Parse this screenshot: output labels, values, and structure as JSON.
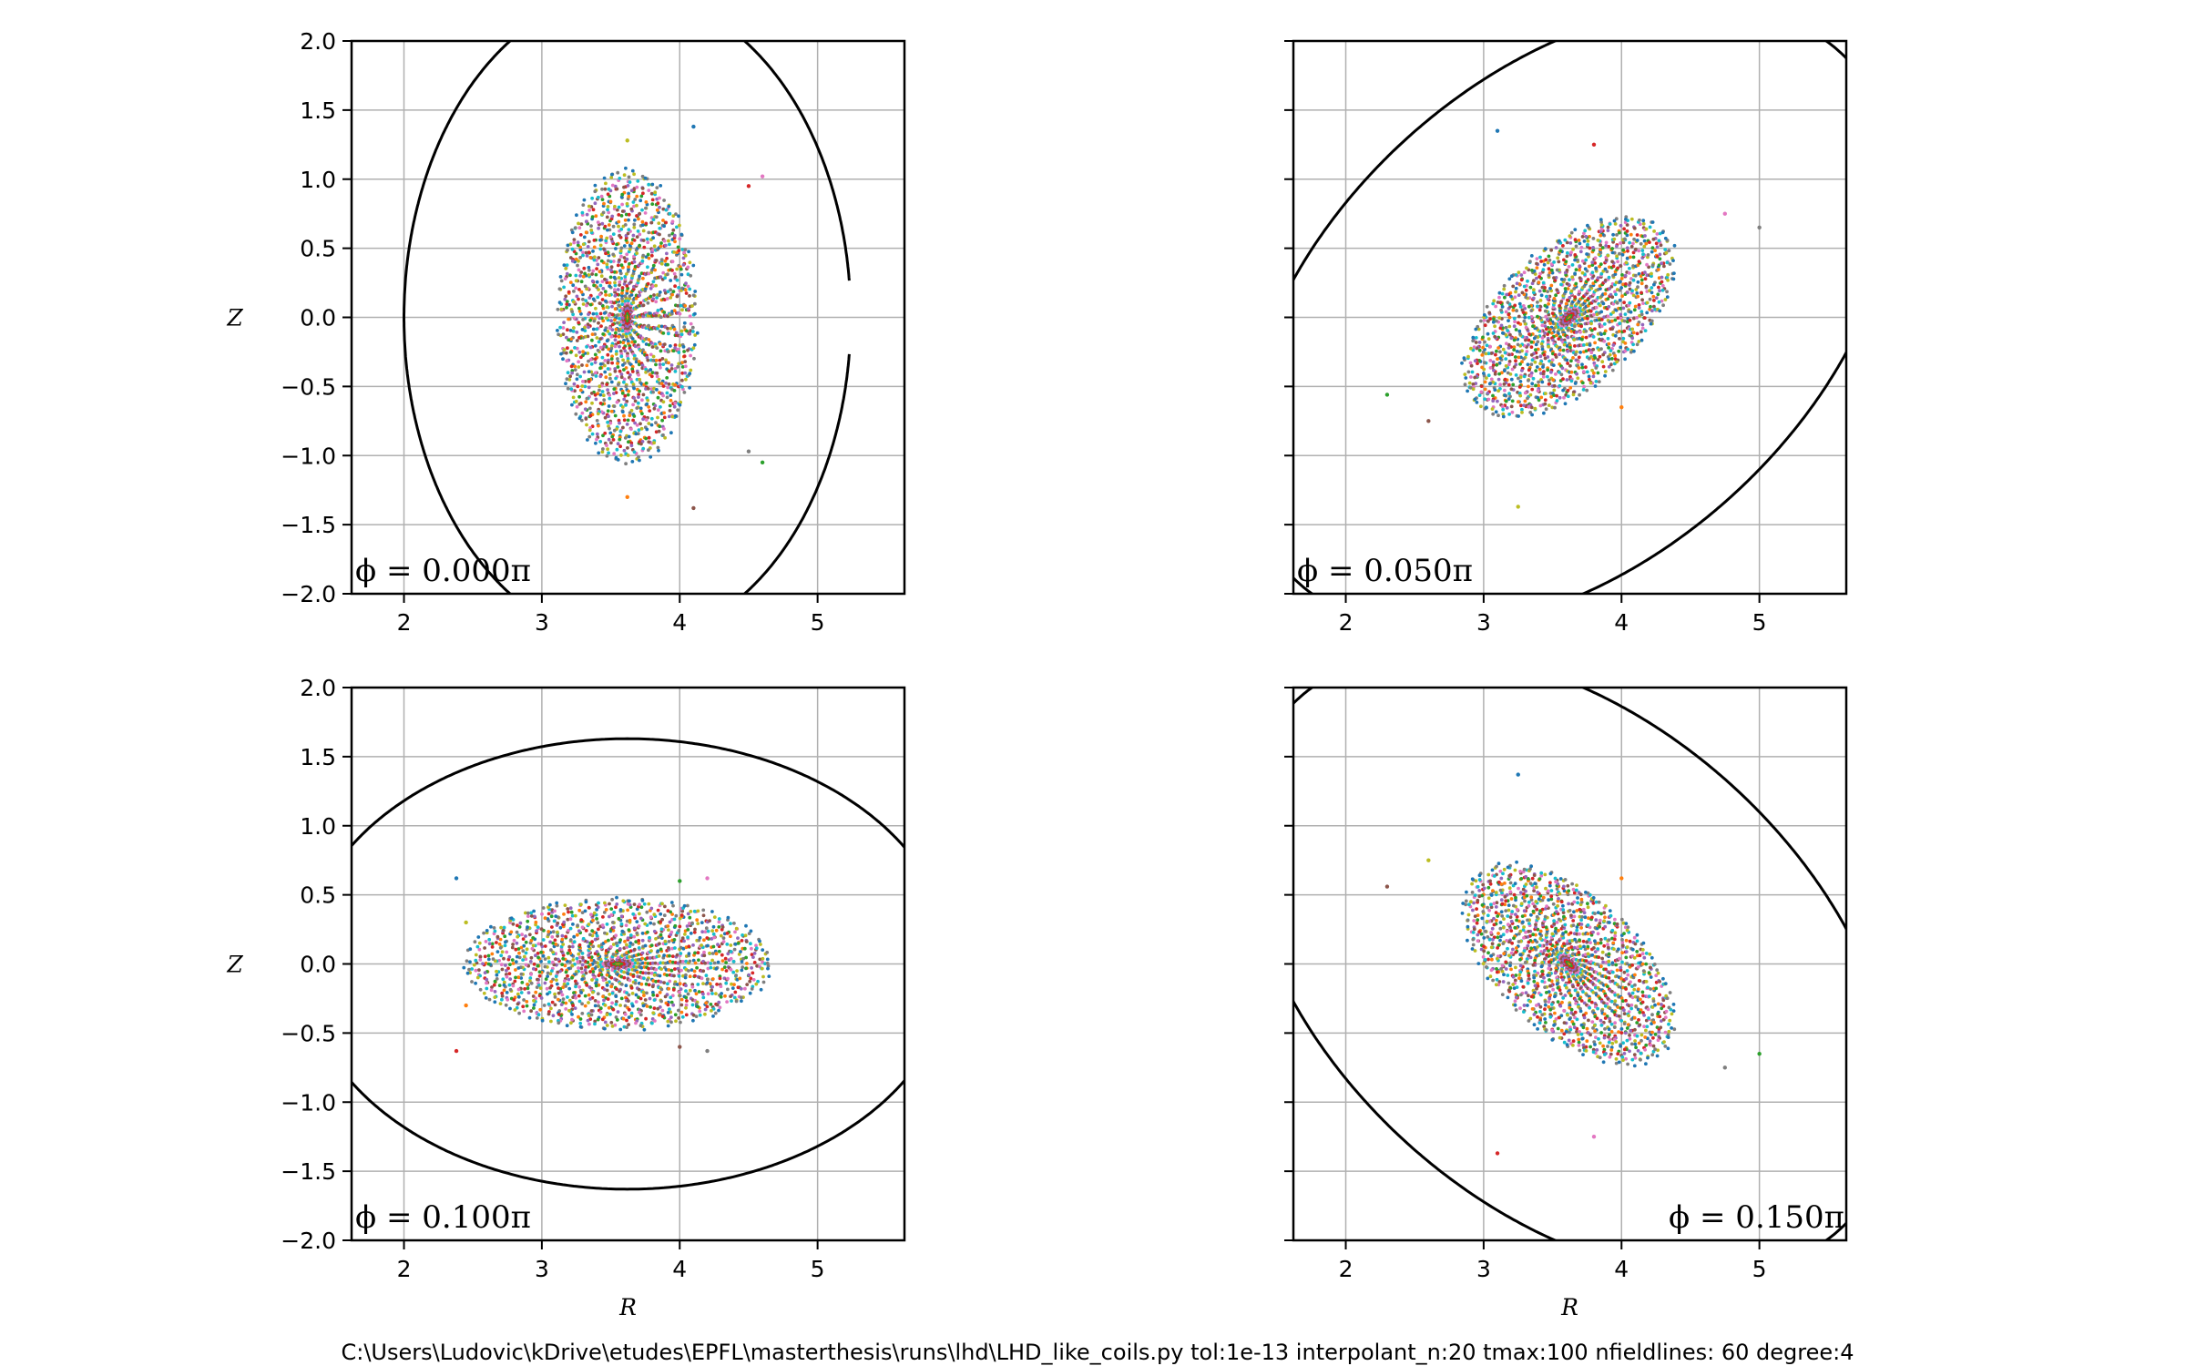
{
  "footer": "C:\\Users\\Ludovic\\kDrive\\etudes\\EPFL\\masterthesis\\runs\\lhd\\LHD_like_coils.py  tol:1e-13  interpolant_n:20  tmax:100  nfieldlines: 60 degree:4",
  "colors": {
    "boundary": "#000000",
    "grid": "#b0b0b0",
    "palette": [
      "#1f77b4",
      "#ff7f0e",
      "#2ca02c",
      "#d62728",
      "#9467bd",
      "#8c564b",
      "#e377c2",
      "#17becf",
      "#bcbd22",
      "#7f7f7f"
    ]
  },
  "chart_data": [
    {
      "type": "scatter",
      "panel": "top-left",
      "annotation": "ϕ = 0.000π",
      "annotation_position": "bottom-left",
      "xlabel": "",
      "ylabel": "Z",
      "xlim": [
        1.62,
        5.63
      ],
      "ylim": [
        -2.0,
        2.0
      ],
      "xticks": [
        2,
        3,
        4,
        5
      ],
      "yticks": [
        -2.0,
        -1.5,
        -1.0,
        -0.5,
        0.0,
        0.5,
        1.0,
        1.5,
        2.0
      ],
      "grid": true,
      "boundary": {
        "center": [
          3.62,
          0.0
        ],
        "a": 1.62,
        "b": 2.35,
        "angle_deg": 0,
        "gap_near_r": 5.25,
        "gap_half_z": 0.25
      },
      "surfaces": {
        "center": [
          3.62,
          0.0
        ],
        "a": 0.5,
        "b": 1.05,
        "angle_deg": 0,
        "count": 60
      },
      "stray_points": [
        [
          4.1,
          1.38
        ],
        [
          4.5,
          0.95
        ],
        [
          4.6,
          1.02
        ],
        [
          4.5,
          -0.97
        ],
        [
          4.6,
          -1.05
        ],
        [
          4.1,
          -1.38
        ],
        [
          3.62,
          1.28
        ],
        [
          3.62,
          -1.3
        ]
      ]
    },
    {
      "type": "scatter",
      "panel": "top-right",
      "annotation": "ϕ = 0.050π",
      "annotation_position": "bottom-left",
      "xlabel": "",
      "ylabel": "",
      "xlim": [
        1.62,
        5.63
      ],
      "ylim": [
        -2.0,
        2.0
      ],
      "xticks": [
        2,
        3,
        4,
        5
      ],
      "yticks": [
        -2.0,
        -1.5,
        -1.0,
        -0.5,
        0.0,
        0.5,
        1.0,
        1.5,
        2.0
      ],
      "grid": true,
      "boundary": {
        "center": [
          3.62,
          0.0
        ],
        "a": 2.75,
        "b": 1.75,
        "angle_deg": 42
      },
      "surfaces": {
        "center": [
          3.62,
          0.0
        ],
        "a": 0.92,
        "b": 0.5,
        "angle_deg": 42,
        "count": 60
      },
      "stray_points": [
        [
          3.1,
          1.35
        ],
        [
          3.8,
          1.25
        ],
        [
          4.75,
          0.75
        ],
        [
          5.0,
          0.65
        ],
        [
          2.3,
          -0.56
        ],
        [
          2.6,
          -0.75
        ],
        [
          3.25,
          -1.37
        ],
        [
          4.0,
          -0.65
        ]
      ]
    },
    {
      "type": "scatter",
      "panel": "bottom-left",
      "annotation": "ϕ = 0.100π",
      "annotation_position": "bottom-left",
      "xlabel": "R",
      "ylabel": "Z",
      "xlim": [
        1.62,
        5.63
      ],
      "ylim": [
        -2.0,
        2.0
      ],
      "xticks": [
        2,
        3,
        4,
        5
      ],
      "yticks": [
        -2.0,
        -1.5,
        -1.0,
        -0.5,
        0.0,
        0.5,
        1.0,
        1.5,
        2.0
      ],
      "grid": true,
      "boundary": {
        "center": [
          3.62,
          0.0
        ],
        "a": 2.35,
        "b": 1.63,
        "angle_deg": 0
      },
      "surfaces": {
        "center": [
          3.55,
          0.0
        ],
        "a": 1.1,
        "b": 0.47,
        "angle_deg": 0,
        "count": 60
      },
      "stray_points": [
        [
          2.38,
          0.62
        ],
        [
          2.38,
          -0.63
        ],
        [
          4.2,
          0.62
        ],
        [
          4.2,
          -0.63
        ],
        [
          4.0,
          0.6
        ],
        [
          4.0,
          -0.6
        ],
        [
          2.45,
          0.3
        ],
        [
          2.45,
          -0.3
        ]
      ]
    },
    {
      "type": "scatter",
      "panel": "bottom-right",
      "annotation": "ϕ = 0.150π",
      "annotation_position": "bottom-right",
      "xlabel": "R",
      "ylabel": "",
      "xlim": [
        1.62,
        5.63
      ],
      "ylim": [
        -2.0,
        2.0
      ],
      "xticks": [
        2,
        3,
        4,
        5
      ],
      "yticks": [
        -2.0,
        -1.5,
        -1.0,
        -0.5,
        0.0,
        0.5,
        1.0,
        1.5,
        2.0
      ],
      "grid": true,
      "boundary": {
        "center": [
          3.62,
          0.0
        ],
        "a": 2.75,
        "b": 1.75,
        "angle_deg": -42
      },
      "surfaces": {
        "center": [
          3.62,
          0.0
        ],
        "a": 0.92,
        "b": 0.5,
        "angle_deg": -42,
        "count": 60
      },
      "stray_points": [
        [
          3.25,
          1.37
        ],
        [
          3.1,
          -1.37
        ],
        [
          3.8,
          -1.25
        ],
        [
          4.75,
          -0.75
        ],
        [
          5.0,
          -0.65
        ],
        [
          2.3,
          0.56
        ],
        [
          2.6,
          0.75
        ],
        [
          4.0,
          0.62
        ]
      ]
    }
  ]
}
